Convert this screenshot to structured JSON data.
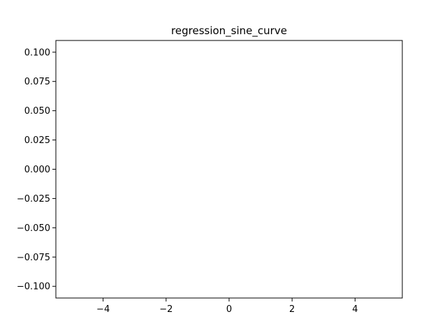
{
  "chart_data": {
    "type": "line",
    "title": "regression_sine_curve",
    "xlabel": "",
    "ylabel": "",
    "series": [],
    "xlim": [
      -5.5,
      5.5
    ],
    "ylim": [
      -0.11,
      0.11
    ],
    "x_ticks": [
      -4,
      -2,
      0,
      2,
      4
    ],
    "x_tick_labels": [
      "−4",
      "−2",
      "0",
      "2",
      "4"
    ],
    "y_ticks": [
      0.1,
      0.075,
      0.05,
      0.025,
      0.0,
      -0.025,
      -0.05,
      -0.075,
      -0.1
    ],
    "y_tick_labels": [
      "0.100",
      "0.075",
      "0.050",
      "0.025",
      "0.000",
      "−0.025",
      "−0.050",
      "−0.075",
      "−0.100"
    ],
    "grid": false,
    "colors": {
      "axes": "#000000",
      "background": "#ffffff"
    }
  }
}
